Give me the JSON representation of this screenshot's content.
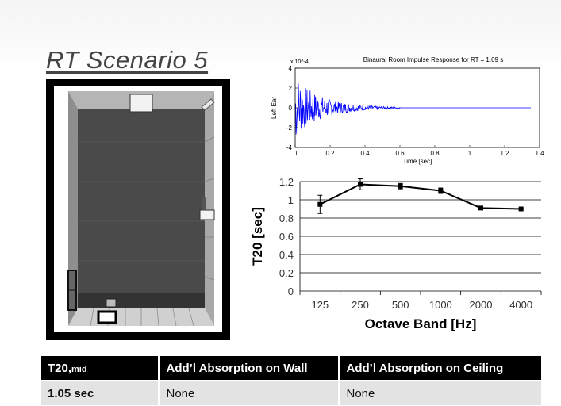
{
  "slide": {
    "title": "RT Scenario  5"
  },
  "table": {
    "headers": [
      {
        "main": "T20,",
        "sub": "mid"
      },
      {
        "main": "Add’l Absorption on Wall"
      },
      {
        "main": "Add’l Absorption on Ceiling"
      }
    ],
    "row": [
      "1.05 sec",
      "None",
      "None"
    ]
  },
  "colors": {
    "waveform": "#0000ff",
    "line": "#000000",
    "room_floor": "#4a4a4a",
    "room_wall": "#9a9a9a"
  },
  "chart_data": [
    {
      "type": "line",
      "title": "Binaural Room Impulse Response for RT = 1.09 s",
      "xlabel": "Time [sec]",
      "ylabel": "Left Ear",
      "y_multiplier_label": "x 10^-4",
      "xlim": [
        0,
        1.4
      ],
      "ylim": [
        -4,
        4
      ],
      "x_ticks": [
        "0",
        "0.2",
        "0.4",
        "0.6",
        "0.8",
        "1",
        "1.2",
        "1.4"
      ],
      "y_ticks": [
        "-4",
        "-2",
        "0",
        "2",
        "4"
      ],
      "envelope": {
        "peak": 3.6,
        "decay_end_sec": 0.6,
        "length_sec": 1.35
      },
      "grid": false
    },
    {
      "type": "line",
      "title": "",
      "xlabel": "Octave Band [Hz]",
      "ylabel": "T20 [sec]",
      "categories": [
        "125",
        "250",
        "500",
        "1000",
        "2000",
        "4000"
      ],
      "values": [
        0.95,
        1.17,
        1.15,
        1.1,
        0.91,
        0.9
      ],
      "errors": [
        0.1,
        0.06,
        0.03,
        0.03,
        0.01,
        0.01
      ],
      "ylim": [
        0,
        1.2
      ],
      "y_ticks": [
        "0",
        "0.2",
        "0.4",
        "0.6",
        "0.8",
        "1",
        "1.2"
      ],
      "grid": true
    }
  ]
}
